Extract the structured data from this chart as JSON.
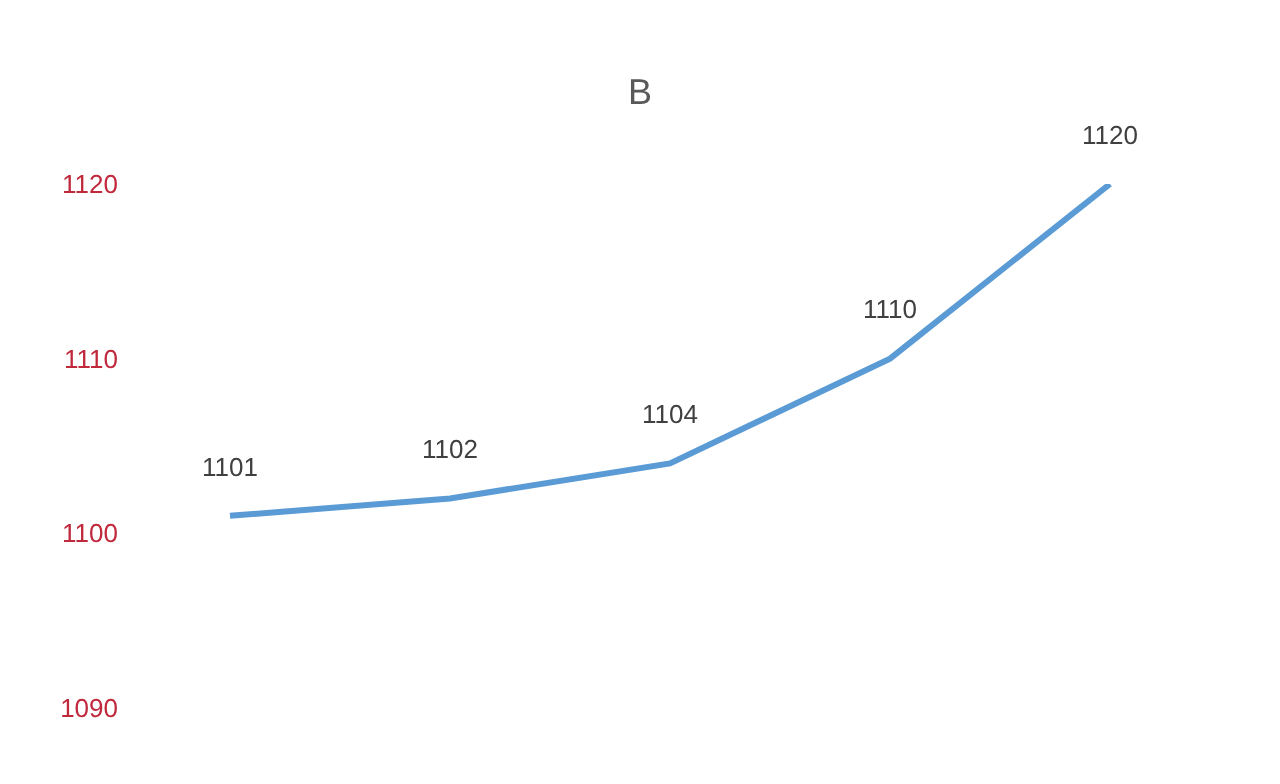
{
  "chart_data": {
    "type": "line",
    "title": "B",
    "categories": [
      null,
      null,
      null,
      null,
      null
    ],
    "series": [
      {
        "color": "#5b9bd5",
        "values": [
          1101,
          1102,
          1104,
          1110,
          1120
        ]
      }
    ],
    "ylim": [
      1090,
      1120
    ],
    "yticks": [
      1090,
      1100,
      1110,
      1120
    ],
    "data_labels": true,
    "tick_labels": "y",
    "legend": false,
    "marker": "none"
  }
}
